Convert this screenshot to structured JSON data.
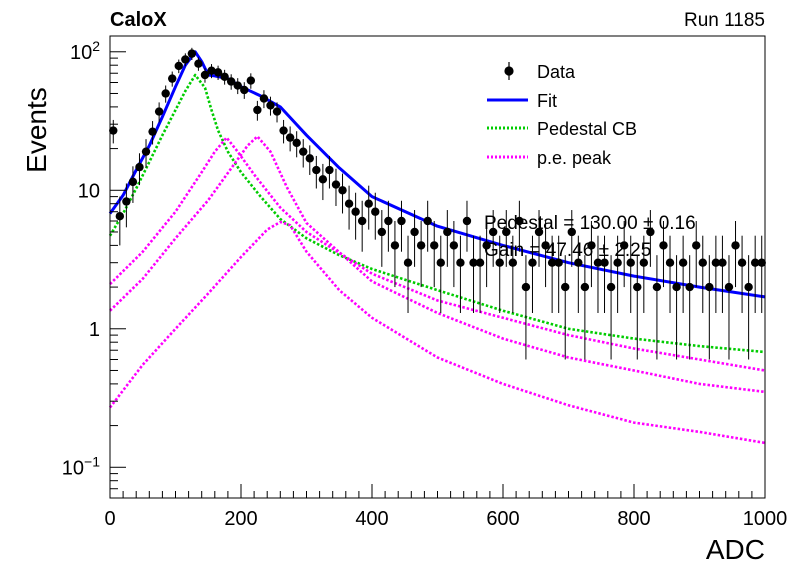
{
  "header": {
    "experiment": "CaloX",
    "run": "Run 1185"
  },
  "chart_data": {
    "type": "scatter",
    "xlabel": "ADC",
    "ylabel": "Events",
    "xlim": [
      0,
      1000
    ],
    "ylim": [
      0.06,
      130
    ],
    "yscale": "log",
    "x_ticks": [
      "0",
      "200",
      "400",
      "600",
      "800",
      "1000"
    ],
    "y_ticks": [
      {
        "value": 0.1,
        "base": "10",
        "exp": "−1"
      },
      {
        "value": 1,
        "label": "1"
      },
      {
        "value": 10,
        "label": "10"
      },
      {
        "value": 100,
        "base": "10",
        "exp": "2"
      }
    ],
    "legend": {
      "placement": "top-right",
      "entries": [
        {
          "label": "Data",
          "marker": "point-errorbar",
          "color": "#000000"
        },
        {
          "label": "Fit",
          "marker": "solid-line",
          "color": "#0000ff"
        },
        {
          "label": "Pedestal CB",
          "marker": "dotted-line",
          "color": "#00cc00"
        },
        {
          "label": "p.e. peak",
          "marker": "dotted-line",
          "color": "#ff00ff"
        }
      ]
    },
    "annotations": [
      "Pedestal = 130.00 ± 0.16",
      "Gain = 47.46 ± 2.25"
    ],
    "series": [
      {
        "name": "Data",
        "kind": "points",
        "color": "#000000",
        "x": [
          5,
          15,
          25,
          35,
          45,
          55,
          65,
          75,
          85,
          95,
          105,
          115,
          125,
          135,
          145,
          155,
          165,
          175,
          185,
          195,
          205,
          215,
          225,
          235,
          245,
          255,
          265,
          275,
          285,
          295,
          305,
          315,
          325,
          335,
          345,
          355,
          365,
          375,
          385,
          395,
          405,
          415,
          425,
          435,
          445,
          455,
          465,
          475,
          485,
          495,
          505,
          515,
          525,
          535,
          545,
          555,
          565,
          575,
          585,
          595,
          605,
          615,
          625,
          635,
          645,
          655,
          665,
          675,
          685,
          695,
          705,
          715,
          725,
          735,
          745,
          755,
          765,
          775,
          785,
          795,
          805,
          815,
          825,
          835,
          845,
          855,
          865,
          875,
          885,
          895,
          905,
          915,
          925,
          935,
          945,
          955,
          965,
          975,
          985,
          995
        ],
        "y": [
          27,
          6.5,
          8.3,
          11.5,
          14.7,
          19,
          26.5,
          37,
          50,
          64,
          79,
          88,
          97,
          82,
          68,
          73,
          71,
          66,
          61,
          57,
          53,
          62,
          38,
          46,
          41,
          37,
          27,
          24,
          22,
          19,
          17,
          14,
          12,
          14,
          11,
          10,
          8,
          7,
          6,
          8,
          7,
          5,
          6,
          4,
          6,
          3,
          5,
          4,
          6,
          4,
          3,
          5,
          4,
          3,
          6,
          3,
          3,
          4,
          5,
          3,
          5,
          3,
          6,
          2,
          3,
          5,
          4,
          3,
          3,
          2,
          5,
          3,
          2,
          4,
          3,
          3,
          2,
          3,
          4,
          3,
          2,
          3,
          5,
          2,
          4,
          3,
          2,
          3,
          2,
          4,
          3,
          2,
          3,
          3,
          2,
          4,
          3,
          2,
          3,
          3
        ],
        "errors": [
          5.2,
          2.5,
          2.9,
          3.4,
          3.8,
          4.4,
          5.1,
          6.1,
          7.1,
          8,
          8.9,
          9.4,
          9.8,
          9.1,
          8.2,
          8.5,
          8.4,
          8.1,
          7.8,
          7.5,
          7.3,
          7.9,
          6.2,
          6.8,
          6.4,
          6.1,
          5.2,
          4.9,
          4.7,
          4.4,
          4.1,
          3.7,
          3.5,
          3.7,
          3.3,
          3.2,
          2.8,
          2.6,
          2.4,
          2.8,
          2.6,
          2.2,
          2.4,
          2,
          2.4,
          1.7,
          2.2,
          2,
          2.4,
          2,
          1.7,
          2.2,
          2,
          1.7,
          2.4,
          1.7,
          1.7,
          2,
          2.2,
          1.7,
          2.2,
          1.7,
          2.4,
          1.4,
          1.7,
          2.2,
          2,
          1.7,
          1.7,
          1.4,
          2.2,
          1.7,
          1.4,
          2,
          1.7,
          1.7,
          1.4,
          1.7,
          2,
          1.7,
          1.4,
          1.7,
          2.2,
          1.4,
          2,
          1.7,
          1.4,
          1.7,
          1.4,
          2,
          1.7,
          1.4,
          1.7,
          1.7,
          1.4,
          2,
          1.7,
          1.4,
          1.7,
          1.7
        ]
      },
      {
        "name": "Fit",
        "kind": "line",
        "color": "#0000ff",
        "dash": "solid",
        "x": [
          0,
          20,
          40,
          60,
          80,
          100,
          115,
          130,
          140,
          150,
          160,
          180,
          200,
          230,
          260,
          300,
          350,
          400,
          500,
          600,
          700,
          800,
          900,
          1000
        ],
        "y": [
          6.8,
          9.2,
          14,
          21,
          34,
          56,
          80,
          100,
          85,
          68,
          67,
          64,
          56,
          48,
          40,
          25,
          14.5,
          9,
          5.5,
          4,
          3,
          2.4,
          2,
          1.7
        ]
      },
      {
        "name": "Pedestal CB",
        "kind": "line",
        "color": "#00cc00",
        "dash": "dotted",
        "x": [
          0,
          20,
          40,
          60,
          80,
          100,
          115,
          130,
          145,
          155,
          165,
          180,
          200,
          230,
          260,
          300,
          350,
          400,
          500,
          600,
          700,
          800,
          900,
          1000
        ],
        "y": [
          4.7,
          6.8,
          10.3,
          16,
          25,
          38,
          52,
          68,
          55,
          38,
          27,
          19,
          13.5,
          9,
          6.2,
          4.5,
          3.4,
          2.7,
          1.9,
          1.35,
          1,
          0.85,
          0.75,
          0.68
        ]
      },
      {
        "name": "p.e. peak",
        "kind": "line",
        "color": "#ff00ff",
        "dash": "dotted",
        "x": [
          0,
          50,
          100,
          140,
          160,
          178,
          195,
          220,
          260,
          300,
          400,
          500,
          600,
          700,
          800,
          900,
          1000
        ],
        "y": [
          2.1,
          3.6,
          7,
          13.5,
          19,
          24,
          19,
          13,
          7.5,
          5,
          2.5,
          1.6,
          1.2,
          0.9,
          0.72,
          0.6,
          0.5
        ]
      },
      {
        "name": "p.e. peak",
        "kind": "line",
        "color": "#ff00ff",
        "dash": "dotted",
        "x": [
          0,
          50,
          100,
          150,
          190,
          210,
          225,
          245,
          270,
          300,
          400,
          500,
          600,
          700,
          800,
          900,
          1000
        ],
        "y": [
          1.35,
          2.3,
          4.5,
          8.5,
          15.5,
          21,
          24.5,
          19,
          10.5,
          5.8,
          2.2,
          1.3,
          0.85,
          0.62,
          0.5,
          0.4,
          0.35
        ]
      },
      {
        "name": "p.e. peak",
        "kind": "line",
        "color": "#ff00ff",
        "dash": "dotted",
        "x": [
          0,
          50,
          100,
          150,
          200,
          240,
          260,
          275,
          300,
          350,
          400,
          500,
          600,
          700,
          800,
          900,
          1000
        ],
        "y": [
          0.27,
          0.55,
          1,
          1.8,
          3.3,
          5.2,
          5.9,
          5.6,
          3.6,
          1.9,
          1.2,
          0.62,
          0.4,
          0.28,
          0.21,
          0.18,
          0.15
        ]
      }
    ]
  }
}
